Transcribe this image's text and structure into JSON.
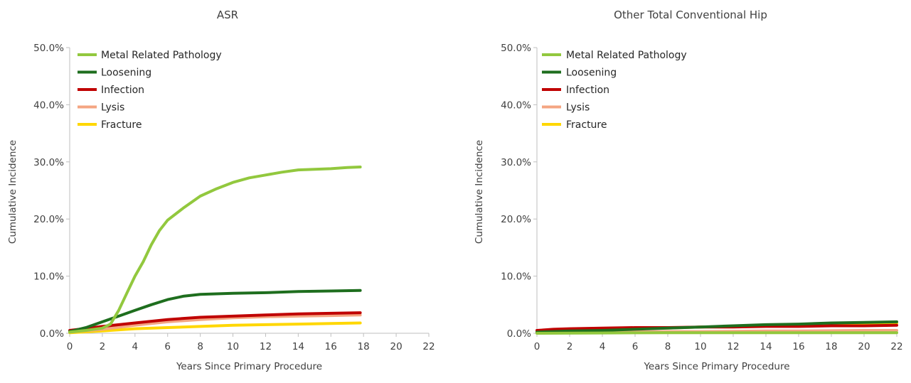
{
  "chart_data": [
    {
      "type": "line",
      "title": "ASR",
      "xlabel": "Years Since Primary Procedure",
      "ylabel": "Cumulative Incidence",
      "xlim": [
        0,
        22
      ],
      "ylim": [
        0,
        50
      ],
      "x_ticks": [
        "0",
        "2",
        "4",
        "6",
        "8",
        "10",
        "12",
        "14",
        "16",
        "18",
        "20",
        "22"
      ],
      "y_ticks": [
        "0.0%",
        "10.0%",
        "20.0%",
        "30.0%",
        "40.0%",
        "50.0%"
      ],
      "grid": false,
      "legend_position": "top-left",
      "series": [
        {
          "name": "Metal Related Pathology",
          "color": "#92c83e",
          "x": [
            0,
            1,
            2,
            2.5,
            3,
            3.5,
            4,
            4.5,
            5,
            5.5,
            6,
            7,
            8,
            9,
            10,
            11,
            12,
            13,
            14,
            15,
            16,
            17,
            17.8
          ],
          "y": [
            0.2,
            0.5,
            0.9,
            1.6,
            4.0,
            7.0,
            10.0,
            12.5,
            15.5,
            18.0,
            19.8,
            22.0,
            24.0,
            25.3,
            26.4,
            27.2,
            27.7,
            28.2,
            28.6,
            28.7,
            28.8,
            29.0,
            29.1
          ]
        },
        {
          "name": "Loosening",
          "color": "#1e6e1e",
          "x": [
            0,
            1,
            2,
            3,
            4,
            5,
            6,
            7,
            8,
            10,
            12,
            14,
            16,
            17.8
          ],
          "y": [
            0.3,
            1.0,
            2.0,
            3.0,
            4.0,
            5.0,
            5.9,
            6.5,
            6.8,
            7.0,
            7.1,
            7.3,
            7.4,
            7.5
          ]
        },
        {
          "name": "Infection",
          "color": "#c00000",
          "x": [
            0,
            2,
            4,
            6,
            8,
            10,
            12,
            14,
            16,
            17.8
          ],
          "y": [
            0.5,
            1.2,
            1.8,
            2.4,
            2.8,
            3.0,
            3.2,
            3.4,
            3.5,
            3.6
          ]
        },
        {
          "name": "Lysis",
          "color": "#f4a582",
          "x": [
            0,
            2,
            4,
            6,
            8,
            10,
            12,
            14,
            16,
            17.8
          ],
          "y": [
            0.2,
            0.7,
            1.4,
            2.0,
            2.4,
            2.7,
            2.9,
            3.0,
            3.1,
            3.2
          ]
        },
        {
          "name": "Fracture",
          "color": "#ffd700",
          "x": [
            0,
            2,
            4,
            6,
            8,
            10,
            12,
            14,
            16,
            17.8
          ],
          "y": [
            0.1,
            0.4,
            0.8,
            1.0,
            1.2,
            1.4,
            1.5,
            1.6,
            1.7,
            1.8
          ]
        }
      ]
    },
    {
      "type": "line",
      "title": "Other Total Conventional Hip",
      "xlabel": "Years Since Primary Procedure",
      "ylabel": "Cumulative Incidence",
      "xlim": [
        0,
        22
      ],
      "ylim": [
        0,
        50
      ],
      "x_ticks": [
        "0",
        "2",
        "4",
        "6",
        "8",
        "10",
        "12",
        "14",
        "16",
        "18",
        "20",
        "22"
      ],
      "y_ticks": [
        "0.0%",
        "10.0%",
        "20.0%",
        "30.0%",
        "40.0%",
        "50.0%"
      ],
      "grid": false,
      "legend_position": "top-left",
      "series": [
        {
          "name": "Metal Related Pathology",
          "color": "#92c83e",
          "x": [
            0,
            4,
            8,
            12,
            16,
            20,
            22
          ],
          "y": [
            0.0,
            0.05,
            0.1,
            0.1,
            0.1,
            0.1,
            0.1
          ]
        },
        {
          "name": "Loosening",
          "color": "#1e6e1e",
          "x": [
            0,
            2,
            4,
            6,
            8,
            10,
            12,
            14,
            16,
            18,
            20,
            22
          ],
          "y": [
            0.2,
            0.4,
            0.5,
            0.7,
            0.9,
            1.1,
            1.3,
            1.5,
            1.6,
            1.8,
            1.9,
            2.0
          ]
        },
        {
          "name": "Infection",
          "color": "#c00000",
          "x": [
            0,
            1,
            2,
            4,
            6,
            8,
            10,
            12,
            14,
            16,
            18,
            20,
            22
          ],
          "y": [
            0.5,
            0.7,
            0.8,
            0.9,
            1.0,
            1.0,
            1.1,
            1.1,
            1.2,
            1.2,
            1.3,
            1.3,
            1.4
          ]
        },
        {
          "name": "Lysis",
          "color": "#f4a582",
          "x": [
            0,
            2,
            4,
            6,
            8,
            10,
            12,
            14,
            16,
            18,
            20,
            22
          ],
          "y": [
            0.1,
            0.15,
            0.2,
            0.25,
            0.3,
            0.3,
            0.35,
            0.4,
            0.4,
            0.45,
            0.5,
            0.5
          ]
        },
        {
          "name": "Fracture",
          "color": "#ffd700",
          "x": [
            0,
            2,
            4,
            6,
            8,
            10,
            12,
            14,
            16,
            18,
            20,
            22
          ],
          "y": [
            0.2,
            0.4,
            0.6,
            0.8,
            0.9,
            1.1,
            1.2,
            1.3,
            1.5,
            1.6,
            1.7,
            1.8
          ]
        }
      ]
    }
  ]
}
